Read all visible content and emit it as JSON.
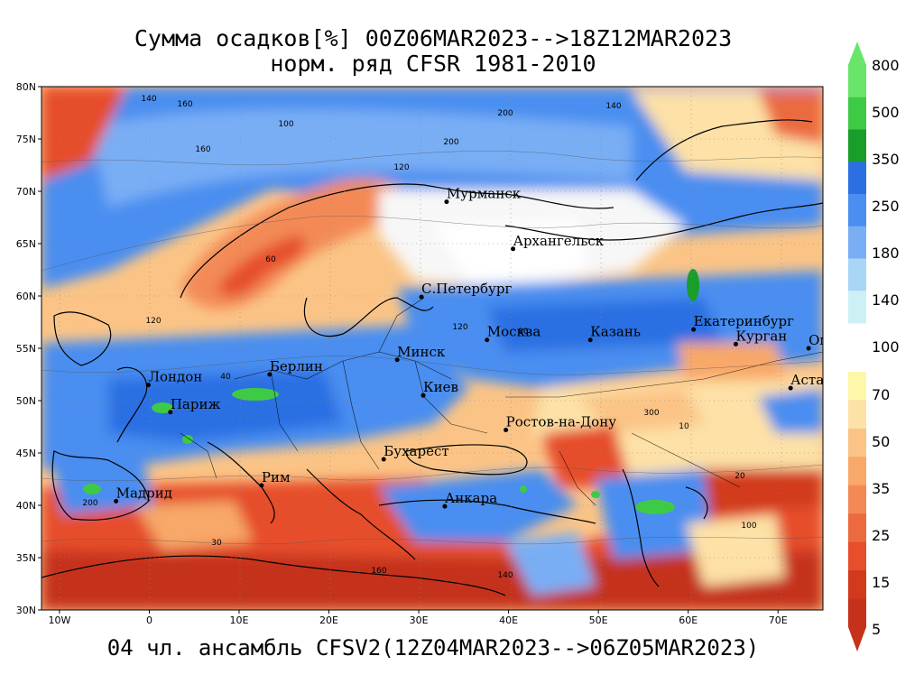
{
  "header": {
    "title_line1": "Сумма осадков[%] 00Z06MAR2023-->18Z12MAR2023",
    "title_line2": "норм. ряд CFSR 1981-2010"
  },
  "footer": "04 чл. ансамбль CFSV2(12Z04MAR2023-->06Z05MAR2023)",
  "axes": {
    "lat_labels": [
      "80N",
      "75N",
      "70N",
      "65N",
      "60N",
      "55N",
      "50N",
      "45N",
      "40N",
      "35N",
      "30N"
    ],
    "lon_labels": [
      "10W",
      "0",
      "10E",
      "20E",
      "30E",
      "40E",
      "50E",
      "60E",
      "70E"
    ]
  },
  "cities": [
    {
      "name": "Мурманск",
      "lon": 33.1,
      "lat": 69.0
    },
    {
      "name": "Архангельск",
      "lon": 40.5,
      "lat": 64.5
    },
    {
      "name": "С.Петербург",
      "lon": 30.3,
      "lat": 59.9
    },
    {
      "name": "Москва",
      "lon": 37.6,
      "lat": 55.8
    },
    {
      "name": "Казань",
      "lon": 49.1,
      "lat": 55.8
    },
    {
      "name": "Екатеринбург",
      "lon": 60.6,
      "lat": 56.8
    },
    {
      "name": "Курган",
      "lon": 65.3,
      "lat": 55.4
    },
    {
      "name": "Омск",
      "lon": 73.4,
      "lat": 55.0
    },
    {
      "name": "Астана",
      "lon": 71.4,
      "lat": 51.2
    },
    {
      "name": "Минск",
      "lon": 27.6,
      "lat": 53.9
    },
    {
      "name": "Киев",
      "lon": 30.5,
      "lat": 50.5
    },
    {
      "name": "Берлин",
      "lon": 13.4,
      "lat": 52.5
    },
    {
      "name": "Лондон",
      "lon": -0.1,
      "lat": 51.5
    },
    {
      "name": "Париж",
      "lon": 2.35,
      "lat": 48.9
    },
    {
      "name": "Мадрид",
      "lon": -3.7,
      "lat": 40.4
    },
    {
      "name": "Рим",
      "lon": 12.5,
      "lat": 41.9
    },
    {
      "name": "Бухарест",
      "lon": 26.1,
      "lat": 44.4
    },
    {
      "name": "Анкара",
      "lon": 32.9,
      "lat": 39.9
    },
    {
      "name": "Ростов-на-Дону",
      "lon": 39.7,
      "lat": 47.2
    }
  ],
  "colorbar": {
    "labels": [
      "800",
      "500",
      "350",
      "250",
      "180",
      "140",
      "100",
      "70",
      "50",
      "35",
      "25",
      "15",
      "5"
    ],
    "colors_upper": [
      "#69e56b",
      "#3fca46",
      "#1a9e2a",
      "#2b6fe3",
      "#4a8ef0",
      "#79aef5",
      "#a9d5f7",
      "#cdf0f7"
    ],
    "colors_lower": [
      "#fff7a8",
      "#fde1a6",
      "#fbc486",
      "#f8a868",
      "#f38a56",
      "#ec6a40",
      "#e64e2c",
      "#d23a1e",
      "#c5321a"
    ]
  },
  "contour_labels": [
    "140",
    "160",
    "100",
    "200",
    "120",
    "60",
    "120",
    "160",
    "200",
    "140",
    "120",
    "80",
    "40",
    "300",
    "10",
    "20",
    "30"
  ]
}
